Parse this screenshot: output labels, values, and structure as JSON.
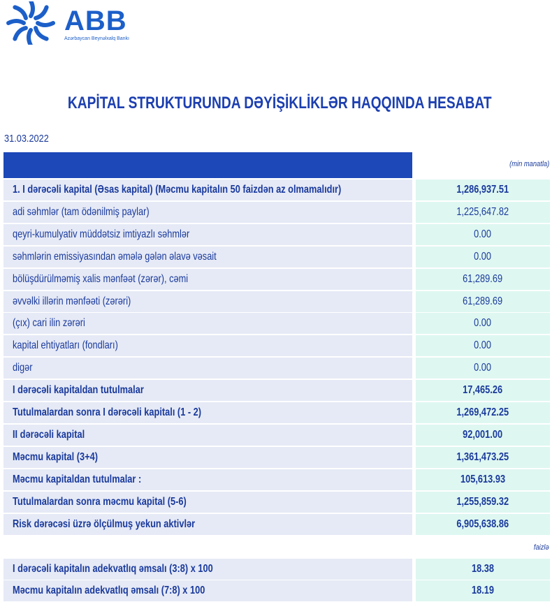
{
  "logo": {
    "name": "ABB",
    "subtitle": "Azərbaycan Beynəlxalq Bankı",
    "color": "#1c5fc9"
  },
  "title": "KAPİTAL STRUKTURUNDA DƏYİŞİKLİKLƏR HAQQINDA HESABAT",
  "date": "31.03.2022",
  "unit_label": "(min manatla)",
  "colors": {
    "header": "#1c48b8",
    "label_cell": "#e6eaf6",
    "value_cell": "#def7f1",
    "text": "#1a3a9c"
  },
  "rows": [
    {
      "label": "1. I dərəcəli kapital (Əsas kapital) (Məcmu kapitalın 50 faizdən  az olmamalıdır)",
      "value": "1,286,937.51",
      "bold": true
    },
    {
      "label": "adi səhmlər (tam ödənilmiş paylar)",
      "value": "1,225,647.82",
      "bold": false
    },
    {
      "label": "qeyri-kumulyativ müddətsiz imtiyazlı səhmlər",
      "value": "0.00",
      "bold": false
    },
    {
      "label": "səhmlərin emissiyasından əmələ gələn  əlavə vəsait",
      "value": "0.00",
      "bold": false
    },
    {
      "label": "bölüşdürülməmiş xalis mənfəət (zərər), cəmi",
      "value": "61,289.69",
      "bold": false
    },
    {
      "label": "əvvəlki illərin mənfəəti (zərəri)",
      "value": "61,289.69",
      "bold": false
    },
    {
      "label": "(çıx) cari ilin zərəri",
      "value": "0.00",
      "bold": false
    },
    {
      "label": "kapital ehtiyatları (fondları)",
      "value": "0.00",
      "bold": false
    },
    {
      "label": "digər",
      "value": "0.00",
      "bold": false
    },
    {
      "label": "I dərəcəli kapitaldan  tutulmalar",
      "value": "17,465.26",
      "bold": true
    },
    {
      "label": "Tutulmalardan  sonra I dərəcəli kapitalı (1 - 2)",
      "value": "1,269,472.25",
      "bold": true
    },
    {
      "label": "II dərəcəli  kapital",
      "value": "92,001.00",
      "bold": true
    },
    {
      "label": "Məcmu kapital (3+4)",
      "value": "1,361,473.25",
      "bold": true
    },
    {
      "label": "Məcmu kapitaldan tutulmalar :",
      "value": "105,613.93",
      "bold": true
    },
    {
      "label": "Tutulmalardan sonra məcmu kapital (5-6)",
      "value": "1,255,859.32",
      "bold": true
    },
    {
      "label": "Risk dərəcəsi üzrə ölçülmuş  yekun aktivlər",
      "value": "6,905,638.86",
      "bold": true
    }
  ],
  "ratio_unit_label": "faizlə",
  "ratios": [
    {
      "label": "I dərəcəli  kapitalın  adekvatlıq əmsalı (3:8) x 100",
      "value": "18.38",
      "bold": true
    },
    {
      "label": "Məcmu kapitalın  adekvatlıq  əmsalı (7:8) x 100",
      "value": "18.19",
      "bold": true
    }
  ]
}
